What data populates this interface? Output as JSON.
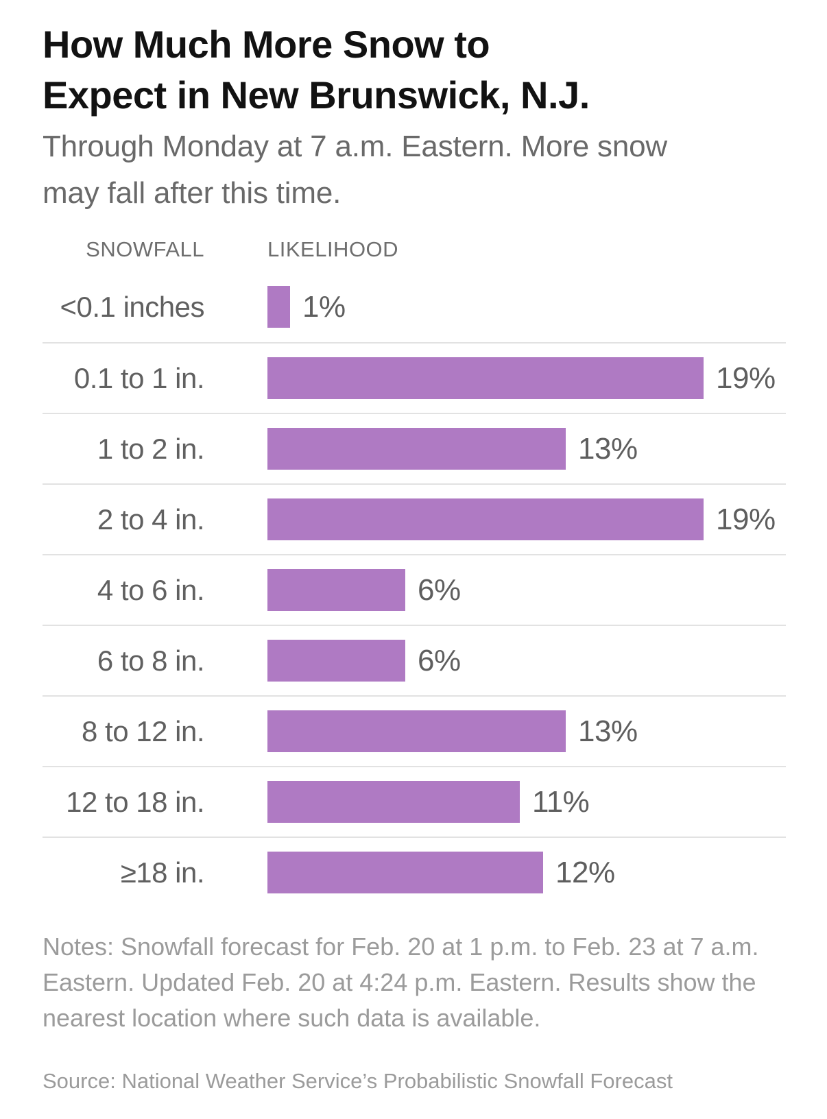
{
  "header": {
    "title_lines": [
      "How Much More Snow to",
      "Expect in New Brunswick, N.J."
    ],
    "subtitle_lines": [
      "Through Monday at 7 a.m. Eastern. More snow",
      "may fall after this time."
    ]
  },
  "table": {
    "col_snowfall": "SNOWFALL",
    "col_likelihood": "LIKELIHOOD"
  },
  "chart_data": {
    "type": "bar",
    "orientation": "horizontal",
    "title": "How Much More Snow to Expect in New Brunswick, N.J.",
    "subtitle": "Through Monday at 7 a.m. Eastern. More snow may fall after this time.",
    "ylabel": "SNOWFALL",
    "xlabel": "LIKELIHOOD",
    "categories": [
      "<0.1 inches",
      "0.1 to 1 in.",
      "1 to 2 in.",
      "2 to 4 in.",
      "4 to 6 in.",
      "6 to 8 in.",
      "8 to 12 in.",
      "12 to 18 in.",
      "≥18 in."
    ],
    "values": [
      1,
      19,
      13,
      19,
      6,
      6,
      13,
      11,
      12
    ],
    "value_labels": [
      "1%",
      "19%",
      "13%",
      "19%",
      "6%",
      "6%",
      "13%",
      "11%",
      "12%"
    ],
    "unit": "percent",
    "xlim": [
      0,
      19
    ],
    "grid": false,
    "legend": false,
    "bar_color": "#af7ac3"
  },
  "colors": {
    "bar": "#af7ac3",
    "title_text": "#121212",
    "subtitle_text": "#696969",
    "label_text": "#606060",
    "separator": "#e2e2e2",
    "footnote_text": "#9b9b9b"
  },
  "footer": {
    "notes_lines": [
      "Notes: Snowfall forecast for Feb. 20 at 1 p.m. to Feb. 23 at 7 a.m.",
      "Eastern. Updated Feb. 20 at 4:24 p.m. Eastern. Results show the",
      "nearest location where such data is available."
    ],
    "source": "Source: National Weather Service’s Probabilistic Snowfall Forecast"
  }
}
